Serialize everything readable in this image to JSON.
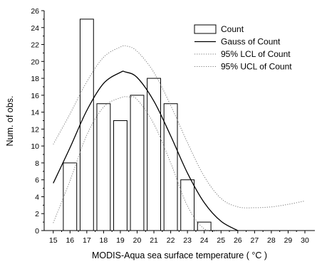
{
  "chart_data": {
    "type": "bar",
    "xlabel": "MODIS-Aqua sea surface temperature ( °C )",
    "ylabel": "Num. of obs.",
    "xlim": [
      15,
      30
    ],
    "ylim": [
      0,
      26
    ],
    "x_ticks": [
      15,
      16,
      17,
      18,
      19,
      20,
      21,
      22,
      23,
      24,
      25,
      26,
      27,
      28,
      29,
      30
    ],
    "y_ticks": [
      0,
      2,
      4,
      6,
      8,
      10,
      12,
      14,
      16,
      18,
      20,
      22,
      24,
      26
    ],
    "grid": false,
    "legend_position": "top-right",
    "bars": {
      "name": "Count",
      "centers": [
        16,
        17,
        18,
        19,
        20,
        21,
        22,
        23,
        24
      ],
      "values": [
        8,
        25,
        15,
        13,
        16,
        18,
        15,
        6,
        1
      ],
      "width": 0.8
    },
    "curves": [
      {
        "name": "Gauss of Count",
        "style": "solid",
        "x": [
          15,
          16,
          17,
          18,
          19,
          19.3,
          20,
          21,
          22,
          23,
          24,
          25,
          26
        ],
        "y": [
          5.6,
          9.8,
          14.2,
          17.4,
          18.7,
          18.75,
          18.1,
          15.3,
          11.2,
          6.8,
          3.3,
          1.1,
          0
        ]
      },
      {
        "name": "95% LCL of Count",
        "style": "dotted",
        "x": [
          15,
          16,
          17,
          18,
          19,
          19.5,
          20,
          21,
          22,
          23,
          24,
          25
        ],
        "y": [
          0.9,
          5.9,
          11.3,
          14.6,
          15.7,
          15.8,
          15.5,
          12.6,
          8.0,
          2.9,
          0.2,
          0
        ]
      },
      {
        "name": "95% UCL of Count",
        "style": "dotted",
        "x": [
          15,
          16,
          17,
          18,
          19,
          19.4,
          20,
          21,
          22,
          23,
          24,
          25,
          26,
          27,
          28,
          29,
          30
        ],
        "y": [
          10.2,
          13.8,
          17.6,
          20.5,
          21.7,
          21.8,
          21.2,
          18.7,
          14.8,
          10.4,
          6.4,
          3.8,
          2.8,
          2.7,
          2.8,
          3.1,
          3.5
        ]
      }
    ],
    "legend": [
      {
        "label": "Count",
        "kind": "box"
      },
      {
        "label": "Gauss of Count",
        "kind": "solid"
      },
      {
        "label": "95% LCL of Count",
        "kind": "dotted"
      },
      {
        "label": "95% UCL of Count",
        "kind": "dotted"
      }
    ]
  }
}
